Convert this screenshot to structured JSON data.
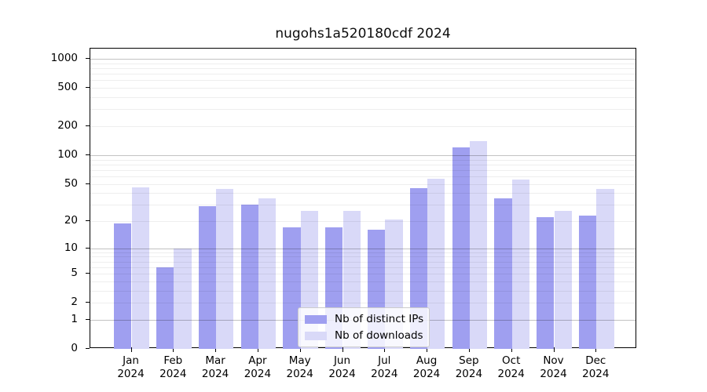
{
  "chart_data": {
    "type": "bar",
    "title": "nugohs1a520180cdf 2024",
    "categories": [
      "Jan",
      "Feb",
      "Mar",
      "Apr",
      "May",
      "Jun",
      "Jul",
      "Aug",
      "Sep",
      "Oct",
      "Nov",
      "Dec"
    ],
    "xtick_year": "2024",
    "series": [
      {
        "name": "Nb of distinct IPs",
        "values": [
          19,
          6,
          29,
          30,
          17,
          17,
          16,
          45,
          120,
          35,
          22,
          23
        ],
        "color": "#9f9ff0"
      },
      {
        "name": "Nb of downloads",
        "values": [
          46,
          10,
          44,
          35,
          26,
          26,
          21,
          57,
          140,
          56,
          26,
          44
        ],
        "color": "#d9d9f8"
      }
    ],
    "yticks": [
      0,
      1,
      2,
      5,
      10,
      20,
      50,
      100,
      200,
      500,
      1000
    ],
    "yscale": "log1p",
    "ylim": [
      0,
      1250
    ],
    "xlabel": "",
    "ylabel": "",
    "grid": true,
    "legend_position": "lower-center"
  }
}
